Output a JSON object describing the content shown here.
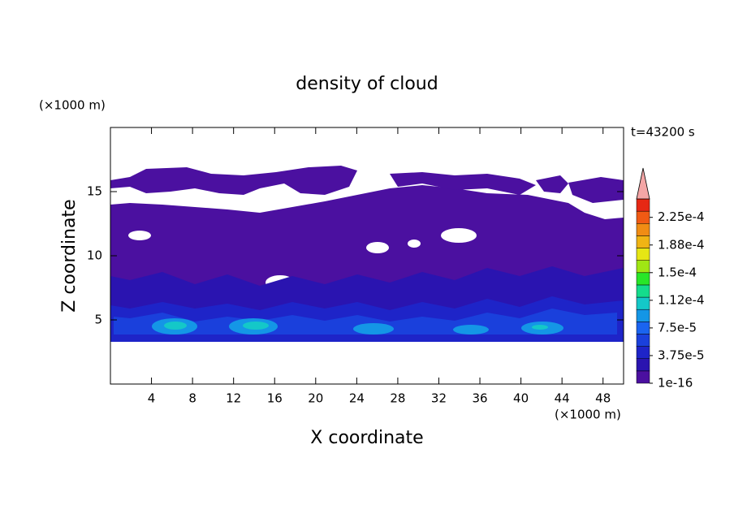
{
  "chart_data": {
    "type": "contour",
    "title": "density of cloud",
    "xlabel": "X coordinate",
    "ylabel": "Z coordinate",
    "x_unit": "(×1000 m)",
    "y_unit": "(×1000 m)",
    "annotation": "t=43200 s",
    "xlim": [
      0,
      50
    ],
    "ylim": [
      0,
      20
    ],
    "xticks": [
      4,
      8,
      12,
      16,
      20,
      24,
      28,
      32,
      36,
      40,
      44,
      48
    ],
    "yticks": [
      5,
      10,
      15
    ],
    "colorbar": {
      "lim": [
        1e-16,
        0.00025
      ],
      "ticks": [
        {
          "value": 1e-16,
          "label": "1e-16"
        },
        {
          "value": 3.75e-05,
          "label": "3.75e-5"
        },
        {
          "value": 7.5e-05,
          "label": "7.5e-5"
        },
        {
          "value": 0.0001125,
          "label": "1.12e-4"
        },
        {
          "value": 0.00015,
          "label": "1.5e-4"
        },
        {
          "value": 0.0001875,
          "label": "1.88e-4"
        },
        {
          "value": 0.000225,
          "label": "2.25e-4"
        }
      ],
      "colors": [
        "#4b10a0",
        "#2a14b0",
        "#1e24c8",
        "#1a40dc",
        "#1a64f0",
        "#1496e6",
        "#14c8c8",
        "#14dc8c",
        "#28e628",
        "#a0e614",
        "#e6e614",
        "#f0b414",
        "#f08c14",
        "#f05a14",
        "#e62814"
      ],
      "extend_color": "#f4a6a6"
    }
  }
}
